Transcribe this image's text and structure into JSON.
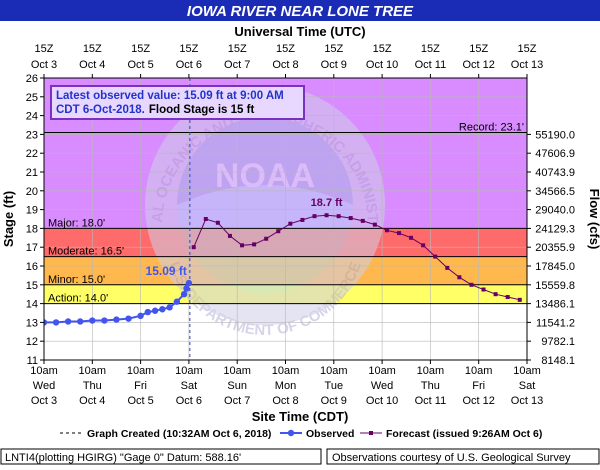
{
  "chart_data": {
    "type": "line",
    "title": "IOWA RIVER NEAR LONE TREE",
    "top_axis_title": "Universal Time (UTC)",
    "bottom_axis_title": "Site Time (CDT)",
    "ylabel": "Stage (ft)",
    "y2label": "Flow (cfs)",
    "ylim": [
      11,
      26
    ],
    "y_ticks": [
      11,
      12,
      13,
      14,
      15,
      16,
      17,
      18,
      19,
      20,
      21,
      22,
      23,
      24,
      25,
      26
    ],
    "xlim": [
      0,
      10
    ],
    "x_ticks_utc": [
      {
        "top": "15Z",
        "bottom": "Oct 3"
      },
      {
        "top": "15Z",
        "bottom": "Oct 4"
      },
      {
        "top": "15Z",
        "bottom": "Oct 5"
      },
      {
        "top": "15Z",
        "bottom": "Oct 6"
      },
      {
        "top": "15Z",
        "bottom": "Oct 7"
      },
      {
        "top": "15Z",
        "bottom": "Oct 8"
      },
      {
        "top": "15Z",
        "bottom": "Oct 9"
      },
      {
        "top": "15Z",
        "bottom": "Oct 10"
      },
      {
        "top": "15Z",
        "bottom": "Oct 11"
      },
      {
        "top": "15Z",
        "bottom": "Oct 12"
      },
      {
        "top": "15Z",
        "bottom": "Oct 13"
      }
    ],
    "x_ticks_local": [
      {
        "time": "10am",
        "day": "Wed",
        "date": "Oct 3"
      },
      {
        "time": "10am",
        "day": "Thu",
        "date": "Oct 4"
      },
      {
        "time": "10am",
        "day": "Fri",
        "date": "Oct 5"
      },
      {
        "time": "10am",
        "day": "Sat",
        "date": "Oct 6"
      },
      {
        "time": "10am",
        "day": "Sun",
        "date": "Oct 7"
      },
      {
        "time": "10am",
        "day": "Mon",
        "date": "Oct 8"
      },
      {
        "time": "10am",
        "day": "Tue",
        "date": "Oct 9"
      },
      {
        "time": "10am",
        "day": "Wed",
        "date": "Oct 10"
      },
      {
        "time": "10am",
        "day": "Thu",
        "date": "Oct 11"
      },
      {
        "time": "10am",
        "day": "Fri",
        "date": "Oct 12"
      },
      {
        "time": "10am",
        "day": "Sat",
        "date": "Oct 13"
      }
    ],
    "flow_ticks": [
      {
        "stage": 12,
        "label": "9782.1"
      },
      {
        "stage": 11,
        "label": "8148.1"
      },
      {
        "stage": 13,
        "label": "11541.2"
      },
      {
        "stage": 14,
        "label": "13486.1"
      },
      {
        "stage": 15,
        "label": "15559.8"
      },
      {
        "stage": 16,
        "label": "17845.0"
      },
      {
        "stage": 17,
        "label": "20355.9"
      },
      {
        "stage": 18,
        "label": "24129.3"
      },
      {
        "stage": 19,
        "label": "29040.0"
      },
      {
        "stage": 20,
        "label": "34566.5"
      },
      {
        "stage": 21,
        "label": "40743.9"
      },
      {
        "stage": 22,
        "label": "47606.9"
      },
      {
        "stage": 23,
        "label": "55190.0"
      }
    ],
    "flood_categories": [
      {
        "label": "Action: 14.0'",
        "from": 14.0,
        "to": 15.0,
        "color": "#ffff66"
      },
      {
        "label": "Minor: 15.0'",
        "from": 15.0,
        "to": 16.5,
        "color": "#ffb84d"
      },
      {
        "label": "Moderate: 16.5'",
        "from": 16.5,
        "to": 18.0,
        "color": "#ff6b6b"
      },
      {
        "label": "Major: 18.0'",
        "from": 18.0,
        "to": 26.0,
        "color": "#d98cff"
      }
    ],
    "record": {
      "label": "Record: 23.1'",
      "value": 23.1
    },
    "observed": {
      "name": "Observed",
      "color": "#4455ee",
      "x": [
        0.0,
        0.25,
        0.5,
        0.75,
        1.0,
        1.25,
        1.5,
        1.75,
        2.0,
        2.15,
        2.3,
        2.45,
        2.6,
        2.75,
        2.9,
        2.95,
        3.0
      ],
      "y": [
        13.0,
        13.0,
        13.05,
        13.05,
        13.1,
        13.1,
        13.15,
        13.2,
        13.35,
        13.55,
        13.62,
        13.7,
        13.8,
        14.1,
        14.5,
        14.8,
        15.09
      ]
    },
    "forecast": {
      "name": "Forecast (issued 9:26AM Oct 6)",
      "color": "#660066",
      "x": [
        3.1,
        3.35,
        3.6,
        3.85,
        4.1,
        4.35,
        4.6,
        4.85,
        5.1,
        5.35,
        5.6,
        5.85,
        6.1,
        6.35,
        6.6,
        6.85,
        7.1,
        7.35,
        7.6,
        7.85,
        8.1,
        8.35,
        8.6,
        8.85,
        9.1,
        9.35,
        9.6,
        9.85
      ],
      "y": [
        17.0,
        18.5,
        18.3,
        17.6,
        17.1,
        17.15,
        17.45,
        17.85,
        18.25,
        18.45,
        18.65,
        18.7,
        18.65,
        18.55,
        18.4,
        18.2,
        17.9,
        17.75,
        17.5,
        17.1,
        16.5,
        15.9,
        15.4,
        15.0,
        14.75,
        14.5,
        14.35,
        14.2
      ]
    },
    "annotations": {
      "observed_label": "15.09 ft",
      "peak_label": "18.7 ft",
      "info_line1": "Latest observed value: 15.09 ft at 9:00 AM",
      "info_line2_blue": "CDT 6-Oct-2018.",
      "info_line2_black": "Flood Stage is 15 ft"
    },
    "created_x": 3.02,
    "legend": {
      "created": "Graph Created (10:32AM Oct 6, 2018)",
      "observed": "Observed",
      "forecast": "Forecast (issued 9:26AM Oct 6)"
    },
    "footer": {
      "left": "LNTI4(plotting HGIRG) \"Gage 0\" Datum: 588.16'",
      "right": "Observations courtesy of U.S. Geological Survey"
    },
    "colors": {
      "title_bar": "#1a2bb5",
      "info_box_bg": "#e8d8ff",
      "info_box_border": "#7a30c0",
      "info_text_blue": "#2233cc",
      "created_line": "#3344cc"
    },
    "watermark": {
      "text_ring": "NATIONAL OCEANIC AND ATMOSPHERIC ADMINISTRATION",
      "text_bottom": "U.S. DEPARTMENT OF COMMERCE",
      "text_center": "NOAA"
    }
  }
}
